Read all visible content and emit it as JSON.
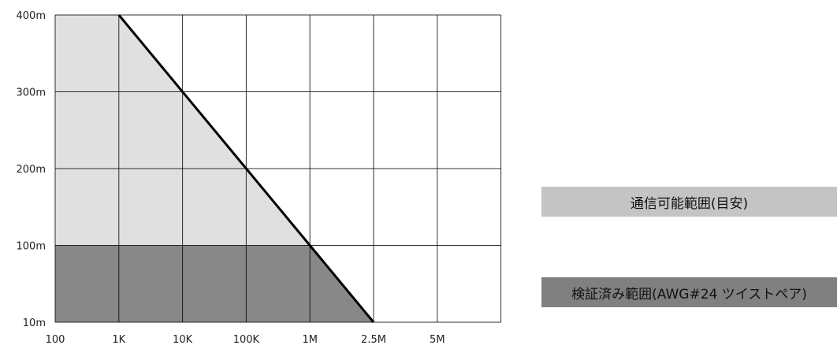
{
  "chart_data": {
    "type": "area",
    "x_categories": [
      "100",
      "1K",
      "10K",
      "100K",
      "1M",
      "2.5M",
      "5M"
    ],
    "y_categories": [
      "10m",
      "100m",
      "200m",
      "300m",
      "400m"
    ],
    "x_scale": "categorical (log-like bitrate steps)",
    "grid": true,
    "series": [
      {
        "name": "通信可能範囲(目安)",
        "color": "#e0e0e0",
        "points": [
          {
            "x": "100",
            "y": "400m"
          },
          {
            "x": "1K",
            "y": "400m"
          },
          {
            "x": "10K",
            "y": "300m"
          },
          {
            "x": "100K",
            "y": "200m"
          },
          {
            "x": "1M",
            "y": "100m"
          },
          {
            "x": "2.5M",
            "y": "10m"
          }
        ]
      },
      {
        "name": "検証済み範囲(AWG#24 ツイストペア)",
        "color": "#888888",
        "points": [
          {
            "x": "100",
            "y": "100m"
          },
          {
            "x": "1M",
            "y": "100m"
          },
          {
            "x": "2.5M",
            "y": "10m"
          }
        ]
      }
    ],
    "boundary_line": [
      {
        "x": "1K",
        "y": "400m"
      },
      {
        "x": "10K",
        "y": "300m"
      },
      {
        "x": "100K",
        "y": "200m"
      },
      {
        "x": "1M",
        "y": "100m"
      },
      {
        "x": "2.5M",
        "y": "10m"
      }
    ],
    "legend": {
      "placement": "right",
      "entries": [
        "通信可能範囲(目安)",
        "検証済み範囲(AWG#24 ツイストペア)"
      ],
      "box_colors": [
        "#c4c4c4",
        "#808080"
      ]
    }
  }
}
